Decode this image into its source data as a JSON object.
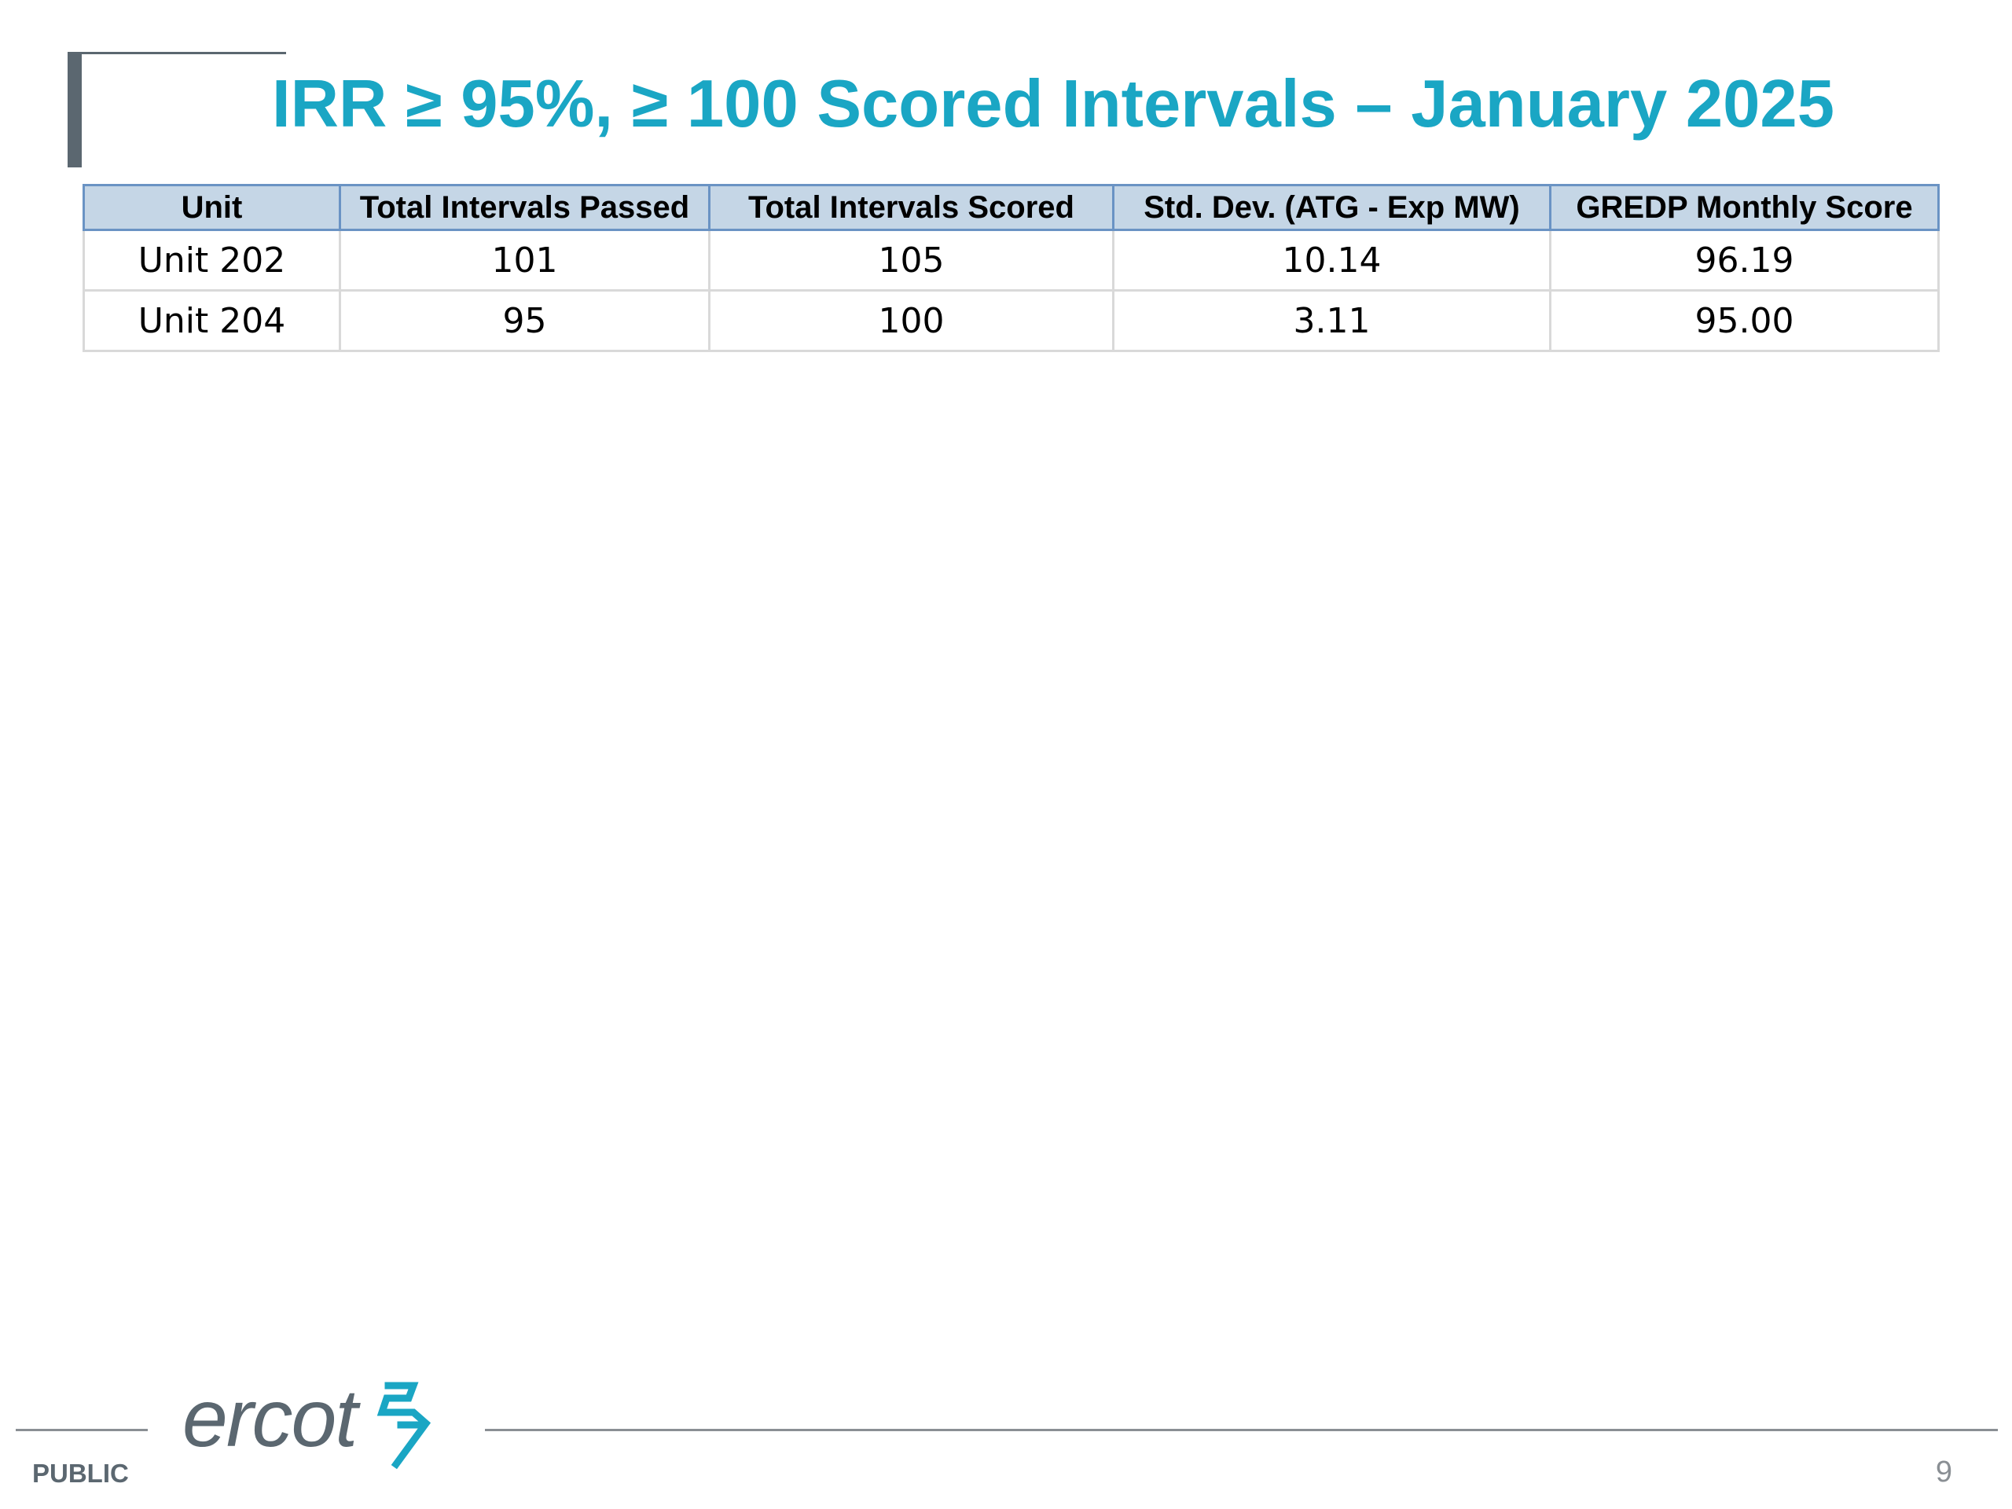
{
  "title": "IRR ≥ 95%, ≥ 100 Scored Intervals – January 2025",
  "table": {
    "columns": [
      "Unit",
      "Total Intervals Passed",
      "Total Intervals Scored",
      "Std. Dev. (ATG - Exp MW)",
      "GREDP Monthly Score"
    ],
    "rows": [
      [
        "Unit 202",
        "101",
        "105",
        "10.14",
        "96.19"
      ],
      [
        "Unit 204",
        "95",
        "100",
        "3.11",
        "95.00"
      ]
    ]
  },
  "footer": {
    "logo_text": "ercot",
    "classification": "PUBLIC",
    "page_number": "9"
  },
  "colors": {
    "title": "#1aa6c4",
    "header_fill": "#c5d6e6",
    "header_border": "#6a93c4",
    "accent_gray": "#5b6770",
    "logo_mark": "#1aa6c4"
  },
  "icons": {
    "logo_mark": "ercot-bolt-logo-icon"
  }
}
